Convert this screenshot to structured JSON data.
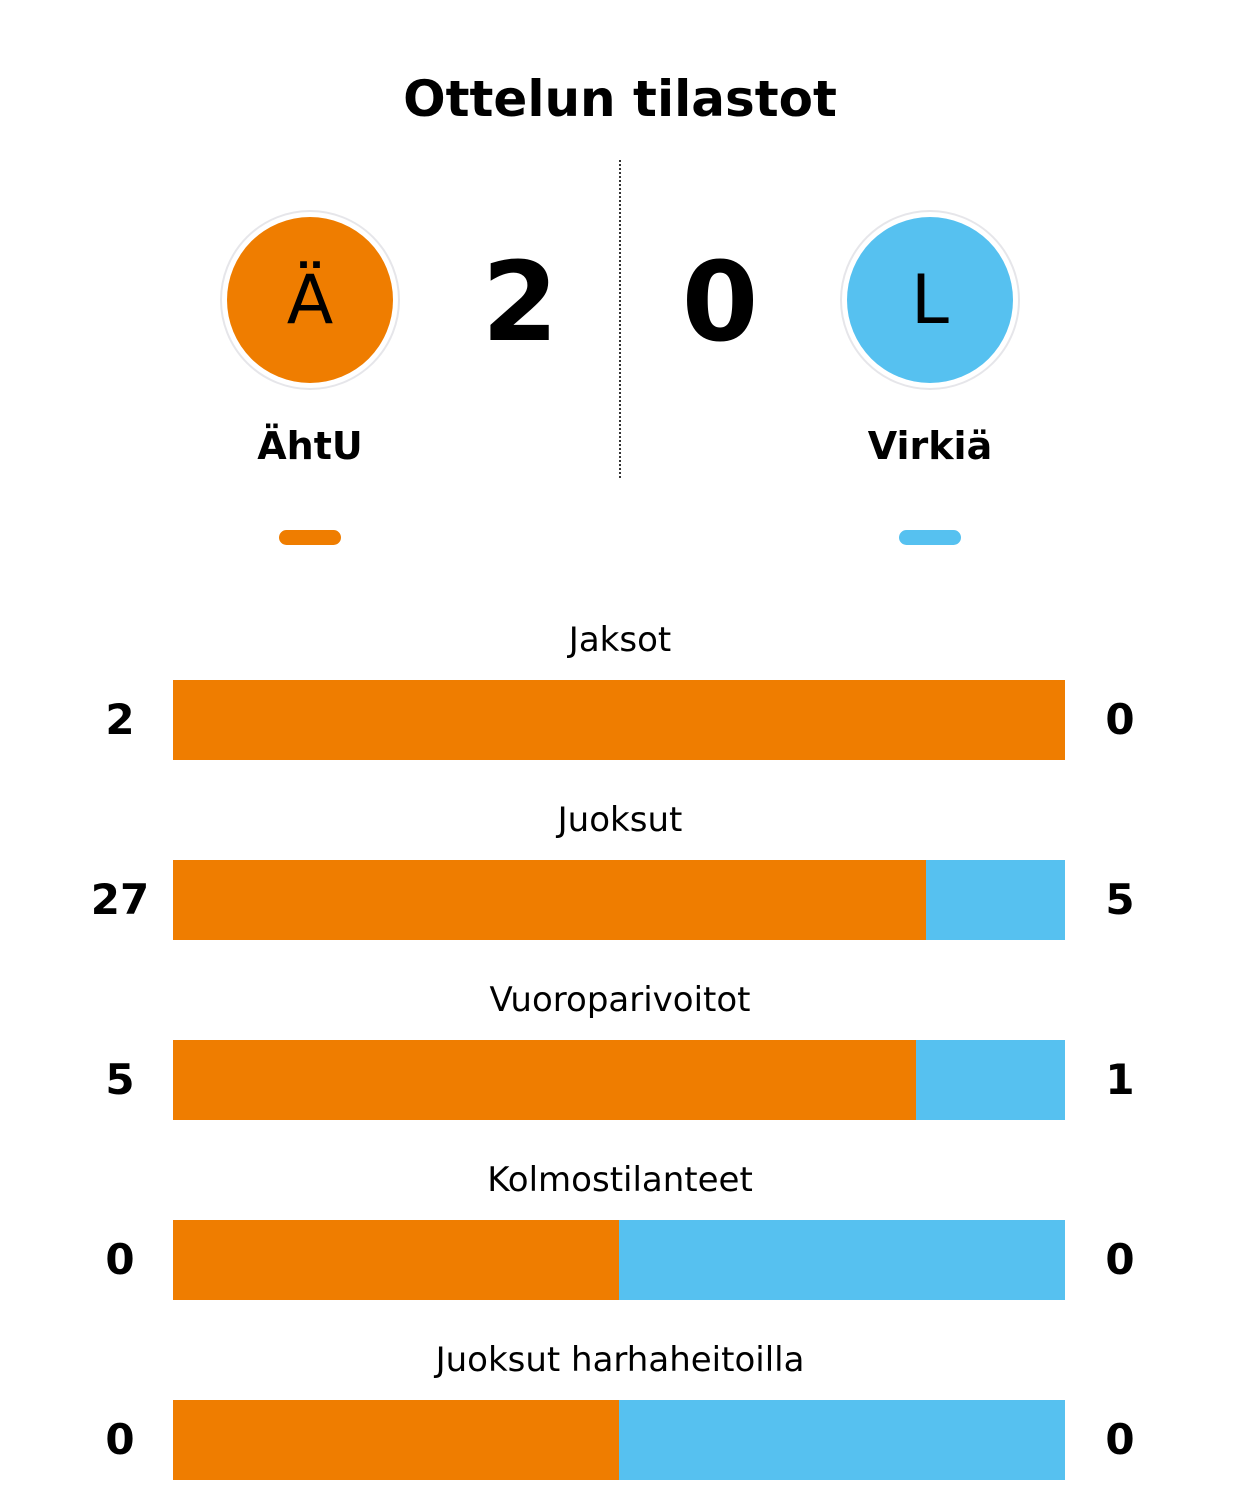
{
  "title": "Ottelun tilastot",
  "colors": {
    "home": "#EF7D00",
    "away": "#56C1F0"
  },
  "home": {
    "name": "ÄhtU",
    "initial": "Ä",
    "score": "2"
  },
  "away": {
    "name": "Virkiä",
    "initial": "L",
    "score": "0"
  },
  "chart_data": {
    "type": "bar",
    "orientation": "horizontal-stacked-share",
    "series": [
      {
        "name": "ÄhtU",
        "values": [
          2,
          27,
          5,
          0,
          0
        ]
      },
      {
        "name": "Virkiä",
        "values": [
          0,
          5,
          1,
          0,
          0
        ]
      }
    ],
    "categories": [
      "Jaksot",
      "Juoksut",
      "Vuoroparivoitot",
      "Kolmostilanteet",
      "Juoksut harhaheitoilla"
    ]
  }
}
